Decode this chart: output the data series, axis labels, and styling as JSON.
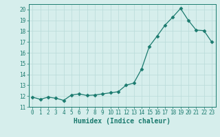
{
  "xlabel": "Humidex (Indice chaleur)",
  "ylabel": "",
  "x": [
    0,
    1,
    2,
    3,
    4,
    5,
    6,
    7,
    8,
    9,
    10,
    11,
    12,
    13,
    14,
    15,
    16,
    17,
    18,
    19,
    20,
    21,
    22,
    23
  ],
  "y": [
    11.9,
    11.7,
    11.9,
    11.8,
    11.6,
    12.1,
    12.2,
    12.05,
    12.1,
    12.2,
    12.3,
    12.4,
    13.0,
    13.2,
    14.5,
    16.6,
    17.55,
    18.55,
    19.3,
    20.1,
    19.0,
    18.1,
    18.05,
    17.0
  ],
  "line_color": "#1a7a6e",
  "marker": "D",
  "marker_size": 2.5,
  "bg_color": "#d6eeec",
  "grid_color": "#b8dbd9",
  "axis_color": "#1a7a6e",
  "tick_color": "#1a7a6e",
  "ylim": [
    11,
    20.5
  ],
  "xlim": [
    -0.5,
    23.5
  ],
  "yticks": [
    11,
    12,
    13,
    14,
    15,
    16,
    17,
    18,
    19,
    20
  ],
  "xticks": [
    0,
    1,
    2,
    3,
    4,
    5,
    6,
    7,
    8,
    9,
    10,
    11,
    12,
    13,
    14,
    15,
    16,
    17,
    18,
    19,
    20,
    21,
    22,
    23
  ],
  "xlabel_fontsize": 7,
  "tick_fontsize": 5.5
}
